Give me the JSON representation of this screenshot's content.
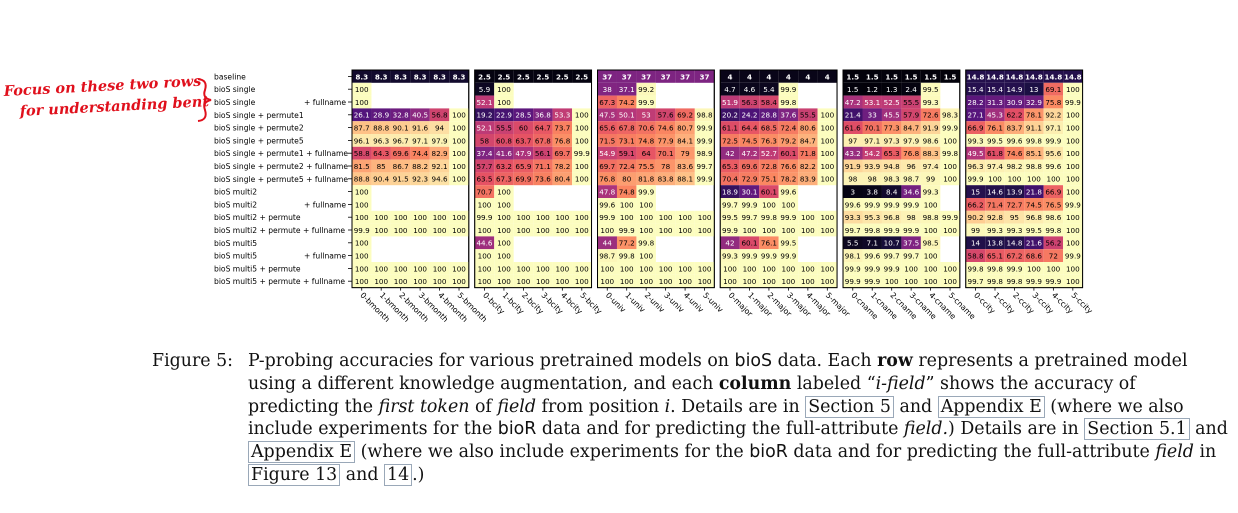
{
  "annotation": {
    "text_line1": "Focus on these two rows",
    "text_line2": "for understanding bent",
    "color": "#e0101c"
  },
  "chart_data": {
    "type": "heatmap",
    "title": "",
    "xlabel": "",
    "ylabel": "",
    "colormap": "magma (low = black/purple, high = pale yellow)",
    "value_range": [
      0,
      100
    ],
    "grid": false,
    "columns": [
      "0-bmonth",
      "1-bmonth",
      "2-bmonth",
      "3-bmonth",
      "4-bmonth",
      "5-bmonth",
      "0-bcity",
      "1-bcity",
      "2-bcity",
      "3-bcity",
      "4-bcity",
      "5-bcity",
      "0-univ",
      "1-univ",
      "2-univ",
      "3-univ",
      "4-univ",
      "5-univ",
      "0-major",
      "1-major",
      "2-major",
      "3-major",
      "4-major",
      "5-major",
      "0-cname",
      "1-cname",
      "2-cname",
      "3-cname",
      "4-cname",
      "5-cname",
      "0-ccity",
      "1-ccity",
      "2-ccity",
      "3-ccity",
      "4-ccity",
      "5-ccity"
    ],
    "rows": [
      {
        "label": "baseline",
        "values": [
          8.3,
          8.3,
          8.3,
          8.3,
          8.3,
          8.3,
          2.5,
          2.5,
          2.5,
          2.5,
          2.5,
          2.5,
          37.0,
          37.0,
          37.0,
          37.0,
          37.0,
          37.0,
          4.0,
          4.0,
          4.0,
          4.0,
          4.0,
          4.0,
          1.5,
          1.5,
          1.5,
          1.5,
          1.5,
          1.5,
          14.8,
          14.8,
          14.8,
          14.8,
          14.8,
          14.8
        ]
      },
      {
        "label": "bioS single",
        "values": [
          100,
          null,
          null,
          null,
          null,
          null,
          5.9,
          100,
          null,
          null,
          null,
          null,
          38.0,
          37.1,
          99.2,
          null,
          null,
          null,
          4.7,
          4.6,
          5.4,
          99.9,
          null,
          null,
          1.5,
          1.2,
          1.3,
          2.4,
          99.5,
          null,
          15.4,
          15.4,
          14.9,
          13.0,
          69.1,
          100
        ]
      },
      {
        "label": "bioS single",
        "suffix": "+ fullname",
        "values": [
          100,
          null,
          null,
          null,
          null,
          null,
          52.1,
          100,
          null,
          null,
          null,
          null,
          67.3,
          74.2,
          99.9,
          null,
          null,
          null,
          51.9,
          56.3,
          58.4,
          99.8,
          null,
          null,
          47.2,
          53.1,
          52.5,
          55.5,
          99.3,
          null,
          28.2,
          31.3,
          30.9,
          32.9,
          75.8,
          99.9
        ]
      },
      {
        "label": "bioS single + permute1",
        "values": [
          26.1,
          28.9,
          32.8,
          40.5,
          56.8,
          100,
          19.2,
          22.9,
          28.5,
          36.8,
          53.3,
          100,
          47.5,
          50.1,
          53.0,
          57.6,
          69.2,
          98.8,
          20.2,
          24.2,
          28.8,
          37.6,
          55.5,
          100,
          21.4,
          33.0,
          45.5,
          57.9,
          72.6,
          98.3,
          27.1,
          45.3,
          62.2,
          78.1,
          92.2,
          100
        ]
      },
      {
        "label": "bioS single + permute2",
        "values": [
          87.7,
          88.8,
          90.1,
          91.6,
          94.0,
          100,
          52.1,
          55.5,
          60.0,
          64.7,
          73.7,
          100,
          65.6,
          67.8,
          70.6,
          74.6,
          80.7,
          99.9,
          61.1,
          64.4,
          68.5,
          72.4,
          80.6,
          100,
          61.6,
          70.1,
          77.3,
          84.7,
          91.9,
          99.9,
          66.9,
          76.1,
          83.7,
          91.1,
          97.1,
          100
        ]
      },
      {
        "label": "bioS single + permute5",
        "values": [
          96.1,
          96.3,
          96.7,
          97.1,
          97.9,
          100,
          58.0,
          60.8,
          63.7,
          67.8,
          76.8,
          100,
          71.5,
          73.1,
          74.8,
          77.9,
          84.1,
          99.9,
          72.5,
          74.5,
          76.3,
          79.2,
          84.7,
          100,
          97.0,
          97.1,
          97.3,
          97.9,
          98.6,
          100,
          99.3,
          99.5,
          99.6,
          99.8,
          99.9,
          100
        ]
      },
      {
        "label": "bioS single + permute1 + fullname",
        "values": [
          58.8,
          64.3,
          69.6,
          74.4,
          82.9,
          100,
          37.4,
          41.6,
          47.9,
          56.1,
          69.7,
          99.9,
          54.9,
          59.1,
          64.0,
          70.1,
          79.0,
          98.9,
          42.0,
          47.2,
          52.7,
          60.1,
          71.8,
          100,
          43.2,
          54.2,
          65.3,
          76.8,
          88.3,
          99.8,
          49.5,
          61.8,
          74.6,
          85.1,
          95.6,
          100
        ]
      },
      {
        "label": "bioS single + permute2 + fullname",
        "values": [
          81.5,
          85.0,
          86.7,
          88.2,
          92.1,
          100,
          57.7,
          63.2,
          65.9,
          71.1,
          78.2,
          100,
          69.7,
          72.4,
          75.5,
          78.0,
          83.6,
          99.7,
          65.3,
          69.6,
          72.8,
          76.6,
          82.2,
          100,
          91.9,
          93.9,
          94.8,
          96.0,
          97.4,
          100,
          96.3,
          97.4,
          98.2,
          98.8,
          99.6,
          100
        ]
      },
      {
        "label": "bioS single + permute5 + fullname",
        "values": [
          88.8,
          90.4,
          91.5,
          92.3,
          94.6,
          100,
          63.5,
          67.3,
          69.9,
          73.6,
          80.4,
          100,
          76.8,
          80.0,
          81.8,
          83.8,
          88.1,
          99.9,
          70.4,
          72.9,
          75.1,
          78.2,
          83.9,
          100,
          98.0,
          98.0,
          98.3,
          98.7,
          99.0,
          100,
          99.9,
          100,
          100,
          100,
          100,
          100
        ]
      },
      {
        "label": "bioS multi2",
        "values": [
          100,
          null,
          null,
          null,
          null,
          null,
          70.7,
          100,
          null,
          null,
          null,
          null,
          47.8,
          74.8,
          99.9,
          null,
          null,
          null,
          18.9,
          30.1,
          60.1,
          99.6,
          null,
          null,
          3.0,
          3.8,
          8.4,
          34.6,
          99.3,
          null,
          15.0,
          14.6,
          13.9,
          21.8,
          66.9,
          100
        ]
      },
      {
        "label": "bioS multi2",
        "suffix": "+ fullname",
        "values": [
          100,
          null,
          null,
          null,
          null,
          null,
          100,
          100,
          null,
          null,
          null,
          null,
          99.6,
          100,
          100,
          null,
          null,
          null,
          99.7,
          99.9,
          100,
          100,
          null,
          null,
          99.6,
          99.9,
          99.9,
          99.9,
          100,
          null,
          66.2,
          71.4,
          72.7,
          74.5,
          76.5,
          99.9
        ]
      },
      {
        "label": "bioS multi2 + permute",
        "values": [
          100,
          100,
          100,
          100,
          100,
          100,
          99.9,
          100,
          100,
          100,
          100,
          100,
          99.9,
          100,
          100,
          100,
          100,
          100,
          99.5,
          99.7,
          99.8,
          99.9,
          100,
          100,
          93.3,
          95.3,
          96.8,
          98.0,
          98.8,
          99.9,
          90.2,
          92.8,
          95.0,
          96.8,
          98.6,
          100
        ]
      },
      {
        "label": "bioS multi2 + permute + fullname",
        "values": [
          99.9,
          100,
          100,
          100,
          100,
          100,
          100,
          100,
          100,
          100,
          100,
          100,
          100,
          99.9,
          100,
          100,
          100,
          100,
          99.9,
          100,
          100,
          100,
          100,
          100,
          99.7,
          99.8,
          99.9,
          99.9,
          100,
          100,
          99.0,
          99.3,
          99.3,
          99.5,
          99.8,
          100
        ]
      },
      {
        "label": "bioS multi5",
        "values": [
          100,
          null,
          null,
          null,
          null,
          null,
          44.6,
          100,
          null,
          null,
          null,
          null,
          44.0,
          77.2,
          99.8,
          null,
          null,
          null,
          42.0,
          60.1,
          76.1,
          99.5,
          null,
          null,
          5.5,
          7.1,
          10.7,
          37.5,
          98.5,
          null,
          14.0,
          13.8,
          14.8,
          21.6,
          56.2,
          100
        ]
      },
      {
        "label": "bioS multi5",
        "suffix": "+ fullname",
        "values": [
          100,
          null,
          null,
          null,
          null,
          null,
          100,
          100,
          null,
          null,
          null,
          null,
          98.7,
          99.8,
          100,
          null,
          null,
          null,
          99.3,
          99.9,
          99.9,
          99.9,
          null,
          null,
          98.1,
          99.6,
          99.7,
          99.7,
          100,
          null,
          58.8,
          65.1,
          67.2,
          68.6,
          72.0,
          99.9
        ]
      },
      {
        "label": "bioS multi5 + permute",
        "values": [
          100,
          100,
          100,
          100,
          100,
          100,
          100,
          100,
          100,
          100,
          100,
          100,
          100,
          100,
          100,
          100,
          100,
          100,
          100,
          100,
          100,
          100,
          100,
          100,
          99.9,
          99.9,
          99.9,
          100,
          100,
          100,
          99.8,
          99.8,
          99.9,
          100,
          100,
          100
        ]
      },
      {
        "label": "bioS multi5 + permute + fullname",
        "values": [
          100,
          100,
          100,
          100,
          100,
          100,
          100,
          100,
          100,
          100,
          100,
          100,
          100,
          100,
          100,
          100,
          100,
          100,
          100,
          100,
          100,
          100,
          100,
          100,
          99.9,
          99.9,
          100,
          100,
          100,
          100,
          99.7,
          99.8,
          99.8,
          99.9,
          99.9,
          100
        ]
      }
    ]
  },
  "caption": {
    "label": "Figure 5:",
    "parts": [
      {
        "t": "P-probing accuracies for various pretrained models on ",
        "s": "n"
      },
      {
        "t": "bioS",
        "s": "sans"
      },
      {
        "t": " data. Each ",
        "s": "n"
      },
      {
        "t": "row",
        "s": "b"
      },
      {
        "t": " represents a pretrained model using a different knowledge augmentation, and each ",
        "s": "n"
      },
      {
        "t": "column",
        "s": "b"
      },
      {
        "t": " labeled “",
        "s": "n"
      },
      {
        "t": "i-field",
        "s": "i"
      },
      {
        "t": "” shows the accuracy of predicting the ",
        "s": "n"
      },
      {
        "t": "first token",
        "s": "i"
      },
      {
        "t": " of ",
        "s": "n"
      },
      {
        "t": "field",
        "s": "i"
      },
      {
        "t": " from position ",
        "s": "n"
      },
      {
        "t": "i",
        "s": "i"
      },
      {
        "t": ". Details are in ",
        "s": "n"
      },
      {
        "t": "Section 5",
        "s": "ref"
      },
      {
        "t": " and ",
        "s": "n"
      },
      {
        "t": "Appendix E",
        "s": "ref"
      },
      {
        "t": " (where we also include experiments for the ",
        "s": "n"
      },
      {
        "t": "bioR",
        "s": "sans"
      },
      {
        "t": " data and for predicting the full-attribute ",
        "s": "n"
      },
      {
        "t": "field.",
        "s": "i"
      },
      {
        "t": ") Details are in ",
        "s": "n"
      },
      {
        "t": "Section 5.1",
        "s": "ref"
      },
      {
        "t": " and ",
        "s": "n"
      },
      {
        "t": "Appendix E",
        "s": "ref"
      },
      {
        "t": " (where we also include experiments for the ",
        "s": "n"
      },
      {
        "t": "bioR",
        "s": "sans"
      },
      {
        "t": " data and for predicting the full-attribute ",
        "s": "n"
      },
      {
        "t": "field",
        "s": "i"
      },
      {
        "t": " in ",
        "s": "n"
      },
      {
        "t": "Figure 13",
        "s": "ref"
      },
      {
        "t": " and ",
        "s": "n"
      },
      {
        "t": "14",
        "s": "ref"
      },
      {
        "t": ".)",
        "s": "n"
      }
    ]
  }
}
